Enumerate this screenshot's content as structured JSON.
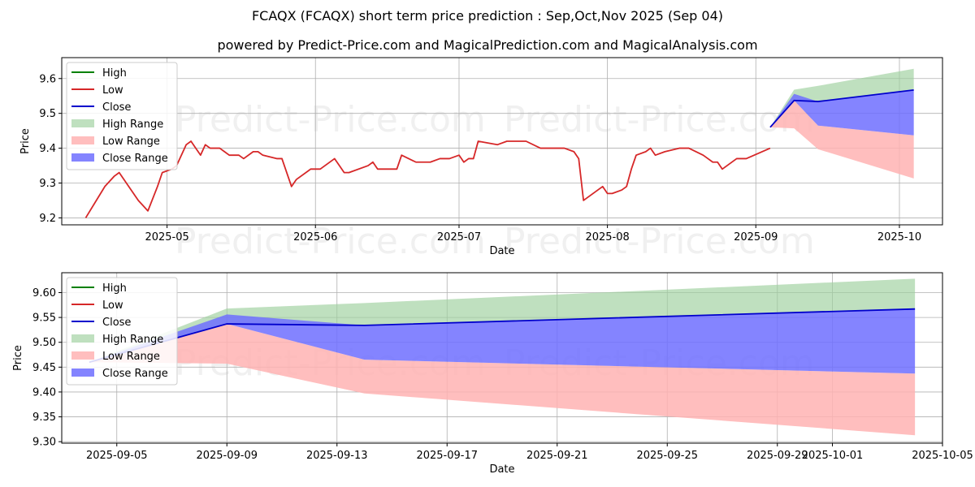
{
  "title": "FCAQX (FCAQX) short term price prediction : Sep,Oct,Nov 2025 (Sep 04)",
  "subtitle": "powered by Predict-Price.com and MagicalPrediction.com and MagicalAnalysis.com",
  "watermark": "Predict-Price.com",
  "colors": {
    "high": "#008000",
    "low": "#d62728",
    "close": "#0000cc",
    "high_range": "#9ccf9c",
    "low_range": "#ffb3b3",
    "close_range": "#6e6eff",
    "grid": "#b0b0b0"
  },
  "chart_data": [
    {
      "type": "line",
      "xlabel": "Date",
      "ylabel": "Price",
      "xlim": [
        "2025-04-09",
        "2025-10-10"
      ],
      "ylim": [
        9.18,
        9.66
      ],
      "grid": true,
      "legend_position": "top-left",
      "x_ticks": [
        "2025-05-01",
        "2025-06-01",
        "2025-07-01",
        "2025-08-01",
        "2025-09-01",
        "2025-10-01"
      ],
      "x_tick_labels": [
        "2025-05",
        "2025-06",
        "2025-07",
        "2025-08",
        "2025-09",
        "2025-10"
      ],
      "y_ticks": [
        9.2,
        9.3,
        9.4,
        9.5,
        9.6
      ],
      "y_tick_labels": [
        "9.2",
        "9.3",
        "9.4",
        "9.5",
        "9.6"
      ],
      "legend": [
        "High",
        "Low",
        "Close",
        "High Range",
        "Low Range",
        "Close Range"
      ],
      "history": {
        "name": "Low",
        "x": [
          "2025-04-14",
          "2025-04-18",
          "2025-04-20",
          "2025-04-21",
          "2025-04-25",
          "2025-04-27",
          "2025-04-29",
          "2025-04-30",
          "2025-05-02",
          "2025-05-03",
          "2025-05-05",
          "2025-05-06",
          "2025-05-07",
          "2025-05-08",
          "2025-05-09",
          "2025-05-10",
          "2025-05-12",
          "2025-05-13",
          "2025-05-14",
          "2025-05-16",
          "2025-05-17",
          "2025-05-19",
          "2025-05-20",
          "2025-05-21",
          "2025-05-24",
          "2025-05-25",
          "2025-05-27",
          "2025-05-28",
          "2025-05-31",
          "2025-06-01",
          "2025-06-02",
          "2025-06-05",
          "2025-06-06",
          "2025-06-07",
          "2025-06-08",
          "2025-06-12",
          "2025-06-13",
          "2025-06-14",
          "2025-06-15",
          "2025-06-18",
          "2025-06-19",
          "2025-06-22",
          "2025-06-25",
          "2025-06-27",
          "2025-06-28",
          "2025-06-29",
          "2025-07-01",
          "2025-07-02",
          "2025-07-03",
          "2025-07-04",
          "2025-07-05",
          "2025-07-09",
          "2025-07-11",
          "2025-07-12",
          "2025-07-13",
          "2025-07-15",
          "2025-07-18",
          "2025-07-23",
          "2025-07-25",
          "2025-07-26",
          "2025-07-27",
          "2025-07-30",
          "2025-07-31",
          "2025-08-01",
          "2025-08-02",
          "2025-08-04",
          "2025-08-05",
          "2025-08-06",
          "2025-08-07",
          "2025-08-09",
          "2025-08-10",
          "2025-08-11",
          "2025-08-13",
          "2025-08-16",
          "2025-08-17",
          "2025-08-18",
          "2025-08-21",
          "2025-08-22",
          "2025-08-23",
          "2025-08-24",
          "2025-08-25",
          "2025-08-28",
          "2025-08-29",
          "2025-08-30",
          "2025-09-04"
        ],
        "values": [
          9.2,
          9.29,
          9.32,
          9.33,
          9.25,
          9.22,
          9.29,
          9.33,
          9.34,
          9.35,
          9.41,
          9.42,
          9.4,
          9.38,
          9.41,
          9.4,
          9.4,
          9.39,
          9.38,
          9.38,
          9.37,
          9.39,
          9.39,
          9.38,
          9.37,
          9.37,
          9.29,
          9.31,
          9.34,
          9.34,
          9.34,
          9.37,
          9.35,
          9.33,
          9.33,
          9.35,
          9.36,
          9.34,
          9.34,
          9.34,
          9.38,
          9.36,
          9.36,
          9.37,
          9.37,
          9.37,
          9.38,
          9.36,
          9.37,
          9.37,
          9.42,
          9.41,
          9.42,
          9.42,
          9.42,
          9.42,
          9.4,
          9.4,
          9.39,
          9.37,
          9.25,
          9.28,
          9.29,
          9.27,
          9.27,
          9.28,
          9.29,
          9.34,
          9.38,
          9.39,
          9.4,
          9.38,
          9.39,
          9.4,
          9.4,
          9.4,
          9.38,
          9.37,
          9.36,
          9.36,
          9.34,
          9.37,
          9.37,
          9.37,
          9.4
        ]
      },
      "forecast": {
        "x": [
          "2025-09-04",
          "2025-09-09",
          "2025-09-14",
          "2025-10-04"
        ],
        "close": [
          9.46,
          9.537,
          9.534,
          9.567
        ],
        "high_range_upper": [
          9.46,
          9.568,
          9.579,
          9.628
        ],
        "high_range_lower": [
          9.46,
          9.537,
          9.534,
          9.567
        ],
        "close_range_upper": [
          9.46,
          9.556,
          9.534,
          9.567
        ],
        "close_range_lower": [
          9.46,
          9.537,
          9.465,
          9.437
        ],
        "low_range_upper": [
          9.46,
          9.537,
          9.465,
          9.437
        ],
        "low_range_lower": [
          9.46,
          9.457,
          9.397,
          9.313
        ]
      }
    },
    {
      "type": "line",
      "xlabel": "Date",
      "ylabel": "Price",
      "xlim": [
        "2025-09-03",
        "2025-10-05"
      ],
      "ylim": [
        9.297,
        9.64
      ],
      "grid": true,
      "legend_position": "top-left",
      "x_ticks": [
        "2025-09-05",
        "2025-09-09",
        "2025-09-13",
        "2025-09-17",
        "2025-09-21",
        "2025-09-25",
        "2025-09-29",
        "2025-10-01",
        "2025-10-05"
      ],
      "x_tick_labels": [
        "2025-09-05",
        "2025-09-09",
        "2025-09-13",
        "2025-09-17",
        "2025-09-21",
        "2025-09-25",
        "2025-09-29",
        "2025-10-01",
        "2025-10-05"
      ],
      "y_ticks": [
        9.3,
        9.35,
        9.4,
        9.45,
        9.5,
        9.55,
        9.6
      ],
      "y_tick_labels": [
        "9.30",
        "9.35",
        "9.40",
        "9.45",
        "9.50",
        "9.55",
        "9.60"
      ],
      "legend": [
        "High",
        "Low",
        "Close",
        "High Range",
        "Low Range",
        "Close Range"
      ]
    }
  ]
}
